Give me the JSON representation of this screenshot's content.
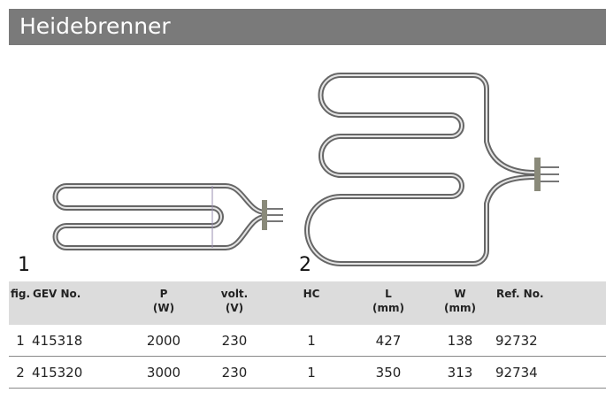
{
  "header": {
    "title": "Heidebrenner"
  },
  "figures": [
    {
      "label": "1"
    },
    {
      "label": "2"
    }
  ],
  "table": {
    "columns": [
      {
        "label": "fig."
      },
      {
        "label": "GEV No."
      },
      {
        "label": "P",
        "unit": "(W)"
      },
      {
        "label": "volt.",
        "unit": "(V)"
      },
      {
        "label": "HC"
      },
      {
        "label": "L",
        "unit": "(mm)"
      },
      {
        "label": "W",
        "unit": "(mm)"
      },
      {
        "label": "Ref. No."
      }
    ],
    "rows": [
      [
        "1",
        "415318",
        "2000",
        "230",
        "1",
        "427",
        "138",
        "92732"
      ],
      [
        "2",
        "415320",
        "3000",
        "230",
        "1",
        "350",
        "313",
        "92734"
      ]
    ]
  }
}
